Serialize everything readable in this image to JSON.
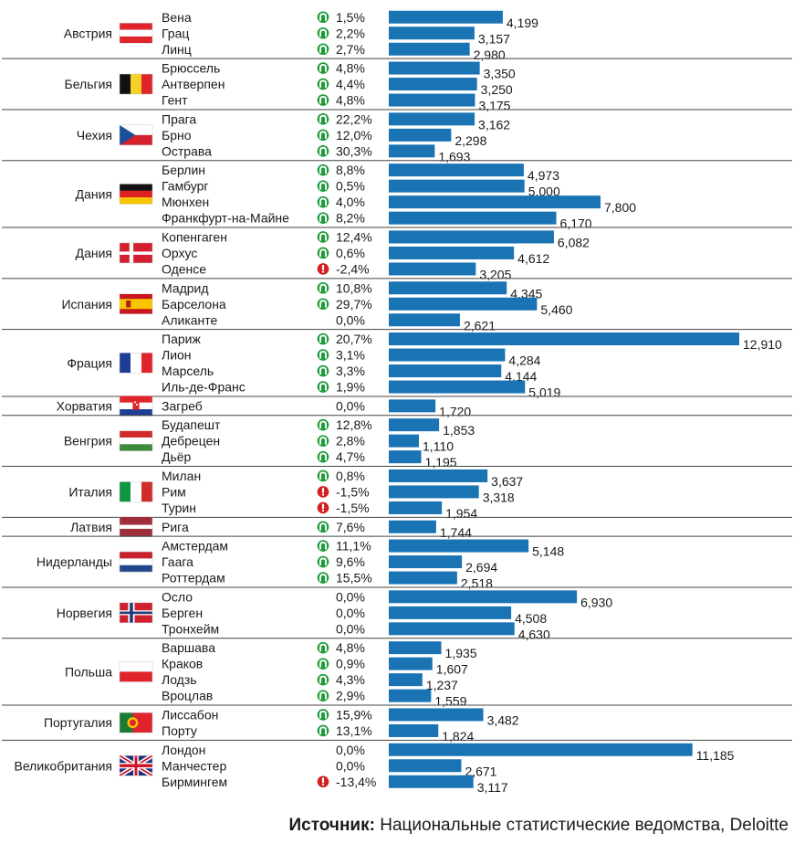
{
  "chart_data": {
    "type": "bar",
    "orientation": "horizontal",
    "title": "",
    "xlabel": "",
    "ylabel": "",
    "xlim": [
      0,
      12910
    ],
    "grid": false,
    "legend": "none",
    "colors": {
      "bar": "#1a74b4",
      "up": "#1f9b3a",
      "down": "#d21f1f",
      "separator": "#444444"
    },
    "groups": [
      {
        "country": "Австрия",
        "flag": "flag-austria",
        "cities": [
          {
            "name": "Вена",
            "change": "1,5%",
            "trend": "up",
            "value": 4199,
            "label": "4,199"
          },
          {
            "name": "Грац",
            "change": "2,2%",
            "trend": "up",
            "value": 3157,
            "label": "3,157"
          },
          {
            "name": "Линц",
            "change": "2,7%",
            "trend": "up",
            "value": 2980,
            "label": "2,980"
          }
        ]
      },
      {
        "country": "Бельгия",
        "flag": "flag-belgium",
        "cities": [
          {
            "name": "Брюссель",
            "change": "4,8%",
            "trend": "up",
            "value": 3350,
            "label": "3,350"
          },
          {
            "name": "Антверпен",
            "change": "4,4%",
            "trend": "up",
            "value": 3250,
            "label": "3,250"
          },
          {
            "name": "Гент",
            "change": "4,8%",
            "trend": "up",
            "value": 3175,
            "label": "3,175"
          }
        ]
      },
      {
        "country": "Чехия",
        "flag": "flag-czech",
        "cities": [
          {
            "name": "Прага",
            "change": "22,2%",
            "trend": "up",
            "value": 3162,
            "label": "3,162"
          },
          {
            "name": "Брно",
            "change": "12,0%",
            "trend": "up",
            "value": 2298,
            "label": "2,298"
          },
          {
            "name": "Острава",
            "change": "30,3%",
            "trend": "up",
            "value": 1693,
            "label": "1,693"
          }
        ]
      },
      {
        "country": "Дания",
        "flag": "flag-germany",
        "cities": [
          {
            "name": "Берлин",
            "change": "8,8%",
            "trend": "up",
            "value": 4973,
            "label": "4,973"
          },
          {
            "name": "Гамбург",
            "change": "0,5%",
            "trend": "up",
            "value": 5000,
            "label": "5,000"
          },
          {
            "name": "Мюнхен",
            "change": "4,0%",
            "trend": "up",
            "value": 7800,
            "label": "7,800"
          },
          {
            "name": "Франкфурт-на-Майне",
            "change": "8,2%",
            "trend": "up",
            "value": 6170,
            "label": "6,170"
          }
        ]
      },
      {
        "country": "Дания",
        "flag": "flag-denmark",
        "cities": [
          {
            "name": "Копенгаген",
            "change": "12,4%",
            "trend": "up",
            "value": 6082,
            "label": "6,082"
          },
          {
            "name": "Орхус",
            "change": "0,6%",
            "trend": "up",
            "value": 4612,
            "label": "4,612"
          },
          {
            "name": "Оденсе",
            "change": "-2,4%",
            "trend": "down",
            "value": 3205,
            "label": "3,205"
          }
        ]
      },
      {
        "country": "Испания",
        "flag": "flag-spain",
        "cities": [
          {
            "name": "Мадрид",
            "change": "10,8%",
            "trend": "up",
            "value": 4345,
            "label": "4,345"
          },
          {
            "name": "Барселона",
            "change": "29,7%",
            "trend": "up",
            "value": 5460,
            "label": "5,460"
          },
          {
            "name": "Аликанте",
            "change": "0,0%",
            "trend": "none",
            "value": 2621,
            "label": "2,621"
          }
        ]
      },
      {
        "country": "Фрация",
        "flag": "flag-france",
        "cities": [
          {
            "name": "Париж",
            "change": "20,7%",
            "trend": "up",
            "value": 12910,
            "label": "12,910"
          },
          {
            "name": "Лион",
            "change": "3,1%",
            "trend": "up",
            "value": 4284,
            "label": "4,284"
          },
          {
            "name": "Марсель",
            "change": "3,3%",
            "trend": "up",
            "value": 4144,
            "label": "4,144"
          },
          {
            "name": "Иль-де-Франс",
            "change": "1,9%",
            "trend": "up",
            "value": 5019,
            "label": "5,019"
          }
        ]
      },
      {
        "country": "Хорватия",
        "flag": "flag-croatia",
        "cities": [
          {
            "name": "Загреб",
            "change": "0,0%",
            "trend": "none",
            "value": 1720,
            "label": "1,720"
          }
        ]
      },
      {
        "country": "Венгрия",
        "flag": "flag-hungary",
        "cities": [
          {
            "name": "Будапешт",
            "change": "12,8%",
            "trend": "up",
            "value": 1853,
            "label": "1,853"
          },
          {
            "name": "Дебрецен",
            "change": "2,8%",
            "trend": "up",
            "value": 1110,
            "label": "1,110"
          },
          {
            "name": "Дьёр",
            "change": "4,7%",
            "trend": "up",
            "value": 1195,
            "label": "1,195"
          }
        ]
      },
      {
        "country": "Италия",
        "flag": "flag-italy",
        "cities": [
          {
            "name": "Милан",
            "change": "0,8%",
            "trend": "up",
            "value": 3637,
            "label": "3,637"
          },
          {
            "name": "Рим",
            "change": "-1,5%",
            "trend": "down",
            "value": 3318,
            "label": "3,318"
          },
          {
            "name": "Турин",
            "change": "-1,5%",
            "trend": "down",
            "value": 1954,
            "label": "1,954"
          }
        ]
      },
      {
        "country": "Латвия",
        "flag": "flag-latvia",
        "cities": [
          {
            "name": "Рига",
            "change": "7,6%",
            "trend": "up",
            "value": 1744,
            "label": "1,744"
          }
        ]
      },
      {
        "country": "Нидерланды",
        "flag": "flag-netherlands",
        "cities": [
          {
            "name": "Амстердам",
            "change": "11,1%",
            "trend": "up",
            "value": 5148,
            "label": "5,148"
          },
          {
            "name": "Гаага",
            "change": "9,6%",
            "trend": "up",
            "value": 2694,
            "label": "2,694"
          },
          {
            "name": "Роттердам",
            "change": "15,5%",
            "trend": "up",
            "value": 2518,
            "label": "2,518"
          }
        ]
      },
      {
        "country": "Норвегия",
        "flag": "flag-norway",
        "cities": [
          {
            "name": "Осло",
            "change": "0,0%",
            "trend": "none",
            "value": 6930,
            "label": "6,930"
          },
          {
            "name": "Берген",
            "change": "0,0%",
            "trend": "none",
            "value": 4508,
            "label": "4,508"
          },
          {
            "name": "Тронхейм",
            "change": "0,0%",
            "trend": "none",
            "value": 4630,
            "label": "4,630"
          }
        ]
      },
      {
        "country": "Польша",
        "flag": "flag-poland",
        "cities": [
          {
            "name": "Варшава",
            "change": "4,8%",
            "trend": "up",
            "value": 1935,
            "label": "1,935"
          },
          {
            "name": "Краков",
            "change": "0,9%",
            "trend": "up",
            "value": 1607,
            "label": "1,607"
          },
          {
            "name": "Лодзь",
            "change": "4,3%",
            "trend": "up",
            "value": 1237,
            "label": "1,237"
          },
          {
            "name": "Вроцлав",
            "change": "2,9%",
            "trend": "up",
            "value": 1559,
            "label": "1,559"
          }
        ]
      },
      {
        "country": "Португалия",
        "flag": "flag-portugal",
        "cities": [
          {
            "name": "Лиссабон",
            "change": "15,9%",
            "trend": "up",
            "value": 3482,
            "label": "3,482"
          },
          {
            "name": "Порту",
            "change": "13,1%",
            "trend": "up",
            "value": 1824,
            "label": "1,824"
          }
        ]
      },
      {
        "country": "Великобритания",
        "flag": "flag-uk",
        "cities": [
          {
            "name": "Лондон",
            "change": "0,0%",
            "trend": "none",
            "value": 11185,
            "label": "11,185"
          },
          {
            "name": "Манчестер",
            "change": "0,0%",
            "trend": "none",
            "value": 2671,
            "label": "2,671"
          },
          {
            "name": "Бирмингем",
            "change": "-13,4%",
            "trend": "down",
            "value": 3117,
            "label": "3,117"
          }
        ]
      }
    ]
  },
  "source": {
    "label": "Источник:",
    "text": " Национальные статистические ведомства, Deloitte"
  }
}
